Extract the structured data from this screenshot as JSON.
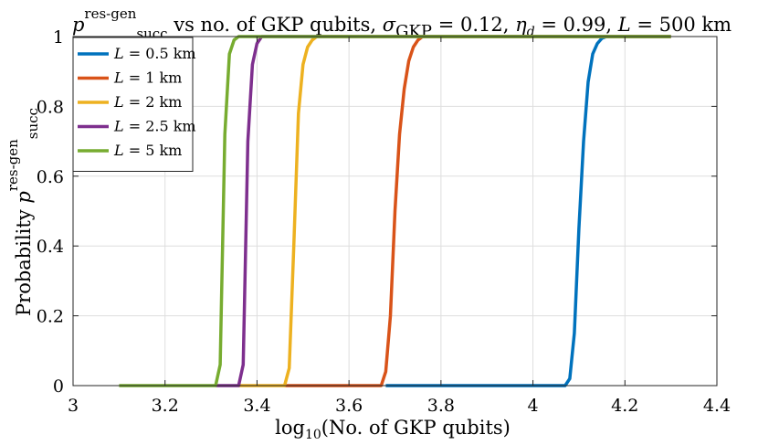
{
  "chart_data": {
    "type": "line",
    "title": {
      "p_symbol": "p",
      "p_sup": "res-gen",
      "p_sub": "succ",
      "middle": " vs no. of GKP qubits, ",
      "sigma_symbol": "σ",
      "sigma_sub": "GKP",
      "sigma_value": " = 0.12, ",
      "eta_symbol": "η",
      "eta_sub": "d",
      "eta_value": " = 0.99, ",
      "L_symbol": "L",
      "L_value": " = 500 km"
    },
    "xlabel": {
      "prefix": "log",
      "sub": "10",
      "suffix": "(No. of GKP qubits)"
    },
    "ylabel": {
      "prefix": "Probability ",
      "p_symbol": "p",
      "p_sup": "res-gen",
      "p_sub": "succ"
    },
    "xlim": [
      3,
      4.4
    ],
    "ylim": [
      0,
      1
    ],
    "x_ticks": [
      "3",
      "3.2",
      "3.4",
      "3.6",
      "3.8",
      "4",
      "4.2",
      "4.4"
    ],
    "y_ticks": [
      "0",
      "0.2",
      "0.4",
      "0.6",
      "0.8",
      "1"
    ],
    "grid": true,
    "legend_position": "top-left",
    "series": [
      {
        "name_symbol": "L",
        "name_value": " = 0.5 km",
        "color": "#0072BD",
        "x": [
          3.68,
          4.07,
          4.08,
          4.09,
          4.1,
          4.11,
          4.12,
          4.13,
          4.14,
          4.15,
          4.16,
          4.17,
          4.3
        ],
        "y": [
          0,
          0,
          0.02,
          0.15,
          0.45,
          0.7,
          0.87,
          0.95,
          0.98,
          0.995,
          1,
          1,
          1
        ]
      },
      {
        "name_symbol": "L",
        "name_value": " = 1 km",
        "color": "#D95319",
        "x": [
          3.46,
          3.67,
          3.68,
          3.69,
          3.7,
          3.71,
          3.72,
          3.73,
          3.74,
          3.75,
          3.76,
          3.8,
          4.3
        ],
        "y": [
          0,
          0,
          0.04,
          0.2,
          0.5,
          0.72,
          0.85,
          0.93,
          0.97,
          0.99,
          1,
          1,
          1
        ]
      },
      {
        "name_symbol": "L",
        "name_value": " = 2 km",
        "color": "#EDB120",
        "x": [
          3.36,
          3.46,
          3.47,
          3.48,
          3.49,
          3.5,
          3.51,
          3.52,
          3.53,
          3.55,
          3.6,
          4.3
        ],
        "y": [
          0,
          0,
          0.05,
          0.4,
          0.78,
          0.92,
          0.97,
          0.99,
          1,
          1,
          1,
          1
        ]
      },
      {
        "name_symbol": "L",
        "name_value": " = 2.5 km",
        "color": "#7E2F8E",
        "x": [
          3.31,
          3.36,
          3.37,
          3.38,
          3.39,
          3.4,
          3.41,
          3.45,
          4.3
        ],
        "y": [
          0,
          0,
          0.06,
          0.7,
          0.92,
          0.98,
          1,
          1,
          1
        ]
      },
      {
        "name_symbol": "L",
        "name_value": " = 5 km",
        "color": "#77AC30",
        "x": [
          3.1,
          3.31,
          3.32,
          3.33,
          3.34,
          3.35,
          3.36,
          3.4,
          4.3
        ],
        "y": [
          0,
          0,
          0.06,
          0.72,
          0.95,
          0.99,
          1,
          1,
          1
        ]
      }
    ]
  }
}
